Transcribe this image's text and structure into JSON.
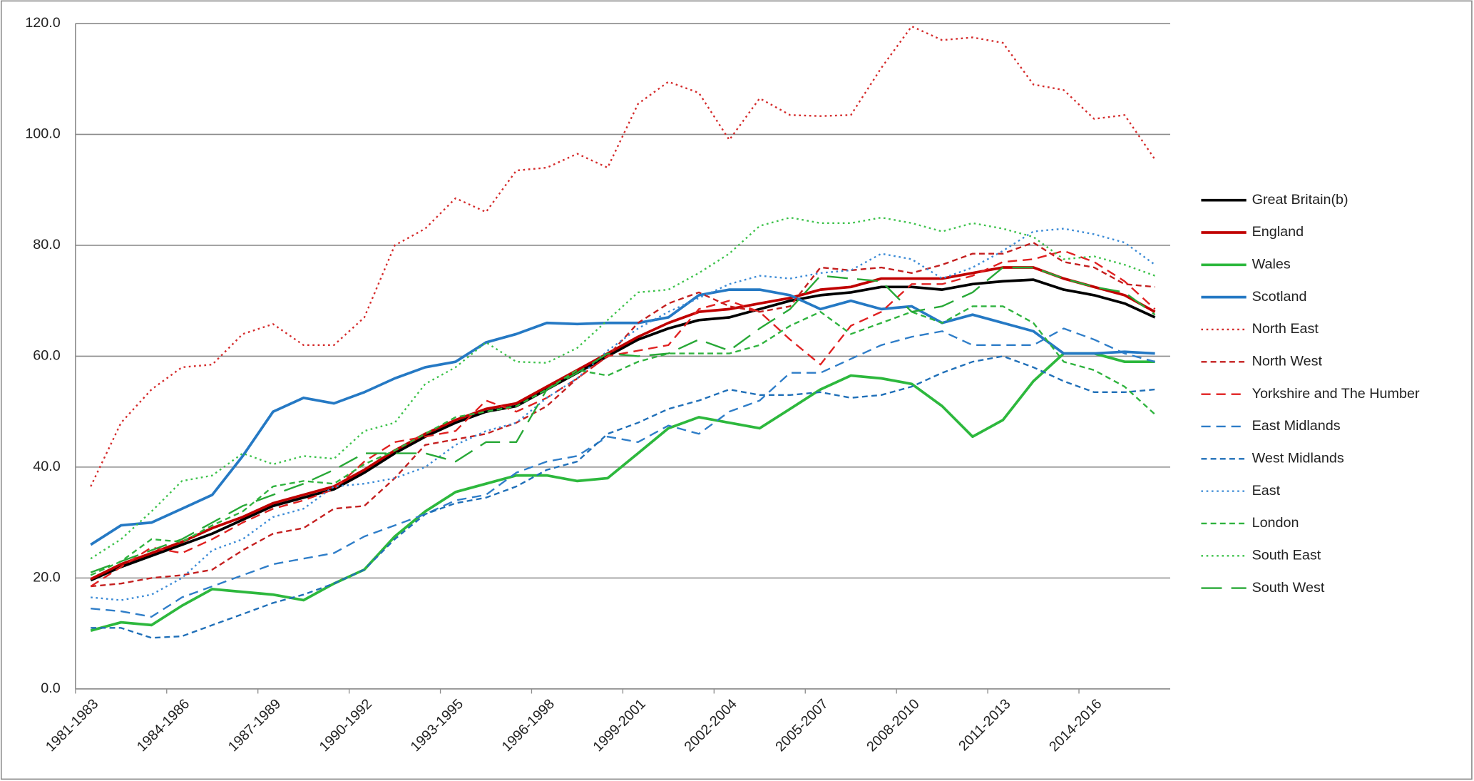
{
  "chart_data": {
    "type": "line",
    "categories": [
      "1981-1983",
      null,
      null,
      "1984-1986",
      null,
      null,
      "1987-1989",
      null,
      null,
      "1990-1992",
      null,
      null,
      "1993-1995",
      null,
      null,
      "1996-1998",
      null,
      null,
      "1999-2001",
      null,
      null,
      "2002-2004",
      null,
      null,
      "2005-2007",
      null,
      null,
      "2008-2010",
      null,
      null,
      "2011-2013",
      null,
      null,
      "2014-2016",
      null,
      null
    ],
    "ylim": [
      0,
      120
    ],
    "yticks": [
      {
        "value": 0,
        "label": "0.0"
      },
      {
        "value": 20,
        "label": "20.0"
      },
      {
        "value": 40,
        "label": "40.0"
      },
      {
        "value": 60,
        "label": "60.0"
      },
      {
        "value": 80,
        "label": "80.0"
      },
      {
        "value": 100,
        "label": "100.0"
      },
      {
        "value": 120,
        "label": "120.0"
      }
    ],
    "grid": true,
    "legend": "right",
    "series": [
      {
        "name": "Great Britain(b)",
        "color": "#000000",
        "dash": "solid",
        "values": [
          19.6,
          22,
          24,
          26,
          28,
          30.5,
          33,
          34.5,
          36,
          39,
          42.5,
          45.5,
          48,
          50,
          51,
          54,
          57,
          60,
          63,
          65,
          66.5,
          67,
          68.5,
          70,
          71,
          71.5,
          72.5,
          72.5,
          72,
          73,
          73.5,
          73.8,
          72,
          71,
          69.5,
          67
        ]
      },
      {
        "name": "England",
        "color": "#c00000",
        "dash": "solid",
        "values": [
          19.8,
          22.5,
          24.5,
          26.5,
          29,
          31,
          33.5,
          35,
          36.5,
          39.5,
          43,
          46,
          48.5,
          50.5,
          51.5,
          54.5,
          57.5,
          60.5,
          63.5,
          66,
          68,
          68.5,
          69.5,
          70.5,
          72,
          72.5,
          74,
          74,
          74,
          75,
          76,
          76,
          74,
          72.5,
          71,
          68
        ]
      },
      {
        "name": "Wales",
        "color": "#2db83d",
        "dash": "solid",
        "values": [
          10.5,
          12,
          11.5,
          15,
          18,
          17.5,
          17,
          16,
          19,
          21.5,
          27.5,
          32,
          35.5,
          37,
          38.5,
          38.5,
          37.5,
          38,
          42.5,
          47,
          49,
          48,
          47,
          50.5,
          54,
          56.5,
          56,
          55,
          51,
          45.5,
          48.5,
          55.5,
          60.5,
          60.5,
          59,
          59
        ]
      },
      {
        "name": "Scotland",
        "color": "#2579c4",
        "dash": "solid",
        "values": [
          26,
          29.5,
          30,
          32.5,
          35,
          42,
          50,
          52.5,
          51.5,
          53.5,
          56,
          58,
          59,
          62.5,
          64,
          66,
          65.8,
          66,
          66,
          67,
          71,
          72,
          72,
          71,
          68.5,
          70,
          68.5,
          69,
          66,
          67.5,
          66,
          64.5,
          60.5,
          60.5,
          60.8,
          60.5
        ]
      },
      {
        "name": "North East",
        "color": "#d42a2a",
        "dash": "dotted",
        "values": [
          36.5,
          48,
          54,
          58,
          58.5,
          64,
          65.8,
          62,
          62,
          67,
          80,
          83,
          88.5,
          86,
          93.5,
          94,
          96.5,
          94,
          105.5,
          109.5,
          107.5,
          99,
          106.5,
          103.5,
          103.3,
          103.5,
          112,
          119.5,
          117,
          117.5,
          116.5,
          109,
          108,
          102.8,
          103.5,
          95.5
        ]
      },
      {
        "name": "North West",
        "color": "#c41e1e",
        "dash": "short",
        "values": [
          18.5,
          19,
          20,
          20.5,
          21.5,
          25,
          28,
          29,
          32.5,
          33,
          38,
          44,
          45,
          46,
          48,
          51,
          56,
          60,
          66,
          69.5,
          71.5,
          69,
          68,
          69,
          76,
          75.5,
          76,
          75,
          76.5,
          78.5,
          78.5,
          80.5,
          77,
          76,
          73,
          72.5
        ]
      },
      {
        "name": "Yorkshire and The Humber",
        "color": "#e02020",
        "dash": "medium",
        "values": [
          18.5,
          22,
          25.5,
          24.5,
          27,
          30,
          32.5,
          34,
          36,
          41,
          44.5,
          45.5,
          46.5,
          52,
          50,
          52.5,
          56,
          60,
          61,
          62,
          68.5,
          70,
          68,
          63,
          58.5,
          65.5,
          68,
          73,
          73,
          74.5,
          77,
          77.5,
          79,
          77,
          73.5,
          68.5
        ]
      },
      {
        "name": "East Midlands",
        "color": "#2e7dc8",
        "dash": "medium",
        "values": [
          14.5,
          14,
          13,
          16.5,
          18.5,
          20.5,
          22.5,
          23.5,
          24.5,
          27.5,
          29.5,
          31.5,
          34,
          35,
          39,
          41,
          42,
          45.5,
          44.5,
          47.5,
          46,
          50,
          52,
          57,
          57,
          59.5,
          62,
          63.5,
          64.5,
          62,
          62,
          62,
          65,
          63,
          60.5,
          59
        ]
      },
      {
        "name": "West Midlands",
        "color": "#1f6fb8",
        "dash": "short",
        "values": [
          11,
          11,
          9.2,
          9.5,
          11.5,
          13.5,
          15.5,
          17,
          19,
          21.5,
          27,
          31.5,
          33.5,
          34.5,
          36.5,
          39.5,
          41,
          46,
          48,
          50.5,
          52,
          54,
          53,
          53,
          53.5,
          52.5,
          53,
          54.5,
          57,
          59,
          60,
          58,
          55.5,
          53.5,
          53.5,
          54
        ]
      },
      {
        "name": "East",
        "color": "#3a8ad6",
        "dash": "dotted",
        "values": [
          16.5,
          16,
          17,
          20,
          25,
          27,
          31,
          32.5,
          36.5,
          37,
          38,
          40,
          44,
          46.5,
          48,
          52.5,
          56,
          61,
          65,
          68,
          70.5,
          73,
          74.5,
          74,
          75,
          75.5,
          78.5,
          77.5,
          74,
          76,
          79,
          82.5,
          83,
          82,
          80.5,
          76.5
        ]
      },
      {
        "name": "London",
        "color": "#2fb33e",
        "dash": "short",
        "values": [
          20.5,
          23,
          27,
          26.5,
          29.5,
          32,
          36.5,
          37.5,
          37,
          40.5,
          43,
          46,
          49,
          50,
          51,
          54,
          57.5,
          56.5,
          59,
          60.5,
          60.5,
          60.5,
          62,
          65.5,
          68,
          64,
          66,
          68,
          66,
          69,
          69,
          66,
          59,
          57.5,
          54.5,
          49.5
        ]
      },
      {
        "name": "South East",
        "color": "#3cc24a",
        "dash": "dotted",
        "values": [
          23.5,
          27,
          32,
          37.5,
          38.5,
          42.5,
          40.5,
          42,
          41.5,
          46.5,
          48,
          55,
          58,
          62.5,
          59,
          58.8,
          61.5,
          66.5,
          71.5,
          72,
          75,
          78.5,
          83.5,
          85,
          84,
          84,
          85,
          84,
          82.5,
          84,
          83,
          81.5,
          77.5,
          78,
          76.5,
          74.5
        ]
      },
      {
        "name": "South West",
        "color": "#27a836",
        "dash": "long",
        "values": [
          21,
          23,
          25,
          27,
          30,
          33,
          35,
          37,
          39.5,
          42.5,
          42.5,
          42.5,
          41,
          44.5,
          44.5,
          54,
          57,
          60.5,
          60,
          60.5,
          63,
          61,
          65,
          68.5,
          74.5,
          74,
          73.5,
          68,
          69,
          71.5,
          76,
          76,
          74,
          72.5,
          71.5,
          67.5
        ]
      }
    ]
  }
}
